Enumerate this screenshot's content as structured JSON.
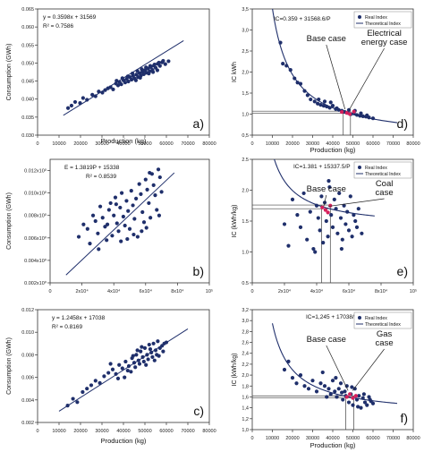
{
  "chart_data": [
    {
      "type": "scatter",
      "panel_label": "a)",
      "ylabel": "Consumption (GWh)",
      "xlabel": "Production (kg)",
      "xlim": [
        0,
        80000
      ],
      "ylim": [
        0.03,
        0.065
      ],
      "x_ticks": [
        0,
        10000,
        20000,
        30000,
        40000,
        50000,
        60000,
        70000,
        80000
      ],
      "x_tick_labels": [
        "0",
        "10000",
        "20000",
        "30000",
        "40000",
        "50000",
        "60000",
        "70000",
        "80000"
      ],
      "y_ticks": [
        0.03,
        0.035,
        0.04,
        0.045,
        0.05,
        0.055,
        0.06,
        0.065
      ],
      "y_tick_labels": [
        "0.030",
        "0.035",
        "0.040",
        "0.045",
        "0.050",
        "0.055",
        "0.060",
        "0.065"
      ],
      "equation": "y = 0.3598x + 31569",
      "r2": "R² = 0.7586",
      "trendline": {
        "x": [
          12000,
          68000
        ],
        "y": [
          0.0355,
          0.0562
        ]
      },
      "points": {
        "x": [
          14200,
          15800,
          17500,
          19800,
          21200,
          23000,
          25500,
          27000,
          28500,
          30200,
          31500,
          32800,
          34000,
          35200,
          36500,
          37500,
          38200,
          39000,
          40000,
          40800,
          41500,
          42300,
          43000,
          43800,
          44500,
          45200,
          46000,
          46800,
          47500,
          48200,
          48800,
          49500,
          50200,
          50800,
          51500,
          52200,
          52800,
          53500,
          54200,
          55000,
          56000,
          57000,
          58000,
          59500,
          61000,
          36800,
          39500,
          42000,
          44200,
          46500,
          48500,
          50500,
          52500,
          54500,
          56500,
          58500,
          45800,
          47800,
          49800,
          51800,
          53800,
          55800
        ],
        "y": [
          0.0375,
          0.0382,
          0.0392,
          0.0389,
          0.0403,
          0.0398,
          0.0412,
          0.0408,
          0.0421,
          0.0418,
          0.0425,
          0.043,
          0.0433,
          0.0427,
          0.0443,
          0.0438,
          0.0447,
          0.0441,
          0.0452,
          0.0446,
          0.0456,
          0.0449,
          0.0461,
          0.0454,
          0.0464,
          0.0457,
          0.0468,
          0.0461,
          0.0472,
          0.0466,
          0.0476,
          0.0469,
          0.0481,
          0.0473,
          0.0485,
          0.0477,
          0.0489,
          0.0481,
          0.0493,
          0.0487,
          0.0498,
          0.0492,
          0.0502,
          0.0497,
          0.0505,
          0.0451,
          0.0458,
          0.0463,
          0.0471,
          0.0478,
          0.0483,
          0.0488,
          0.0492,
          0.0496,
          0.0501,
          0.0506,
          0.0452,
          0.0459,
          0.0479,
          0.0471,
          0.0475,
          0.048
        ]
      }
    },
    {
      "type": "scatter",
      "panel_label": "b)",
      "ylabel": "Consumption (GWh)",
      "xlim": [
        0,
        100000
      ],
      "ylim": [
        0.002,
        0.013
      ],
      "x_ticks": [
        0,
        20000,
        40000,
        60000,
        80000,
        100000
      ],
      "x_tick_labels": [
        "0",
        "2x10⁴",
        "4x10⁴",
        "6x10⁴",
        "8x10⁴",
        "10⁵"
      ],
      "y_ticks": [
        0.002,
        0.004,
        0.006,
        0.008,
        0.01,
        0.012
      ],
      "y_tick_labels": [
        "0.002x10⁰",
        "0.004x10⁰",
        "0.006x10⁰",
        "0.008x10⁰",
        "0.010x10⁰",
        "0.012x10⁰"
      ],
      "equation": "E = 1.3819P + 15338",
      "r2": "R² = 0.8539",
      "trendline": {
        "x": [
          10000,
          78000
        ],
        "y": [
          0.0027,
          0.0118
        ]
      },
      "points": {
        "x": [
          18000,
          21000,
          23500,
          25000,
          27000,
          28500,
          30000,
          31500,
          33000,
          34500,
          35500,
          37000,
          38000,
          39000,
          40000,
          41000,
          42000,
          43000,
          44000,
          45000,
          46000,
          47000,
          48000,
          49000,
          50000,
          51000,
          52000,
          53000,
          54000,
          55000,
          56000,
          57000,
          58000,
          59000,
          60000,
          61000,
          62000,
          63000,
          64000,
          65000,
          66000,
          67000,
          68000,
          69000,
          70000,
          36000,
          44500,
          52500,
          60500,
          68500,
          30500,
          48500,
          57500,
          62500,
          41500
        ],
        "y": [
          0.0061,
          0.0072,
          0.0068,
          0.0055,
          0.008,
          0.0075,
          0.0064,
          0.0088,
          0.0078,
          0.007,
          0.0058,
          0.0085,
          0.0091,
          0.0062,
          0.008,
          0.0096,
          0.0073,
          0.0066,
          0.0087,
          0.01,
          0.0079,
          0.0071,
          0.0093,
          0.0084,
          0.0068,
          0.0102,
          0.0089,
          0.0077,
          0.0095,
          0.0061,
          0.0108,
          0.0099,
          0.0083,
          0.0074,
          0.0112,
          0.0103,
          0.0091,
          0.0078,
          0.0117,
          0.0107,
          0.0098,
          0.0085,
          0.0121,
          0.0114,
          0.0101,
          0.0072,
          0.0057,
          0.0063,
          0.0069,
          0.008,
          0.005,
          0.0059,
          0.0066,
          0.0118,
          0.009
        ]
      }
    },
    {
      "type": "scatter",
      "panel_label": "c)",
      "ylabel": "Consumption (GWh)",
      "xlabel": "Production (kg)",
      "xlim": [
        0,
        80000
      ],
      "ylim": [
        0.002,
        0.012
      ],
      "x_ticks": [
        0,
        10000,
        20000,
        30000,
        40000,
        50000,
        60000,
        70000,
        80000
      ],
      "x_tick_labels": [
        "0",
        "10000",
        "20000",
        "30000",
        "40000",
        "50000",
        "60000",
        "70000",
        "80000"
      ],
      "y_ticks": [
        0.002,
        0.004,
        0.006,
        0.008,
        0.01,
        0.012
      ],
      "y_tick_labels": [
        "0.002",
        "0.004",
        "0.006",
        "0.008",
        "0.010",
        "0.012"
      ],
      "equation": "y = 1.2458x + 17038",
      "r2": "R² = 0.8169",
      "trendline": {
        "x": [
          10000,
          70000
        ],
        "y": [
          0.003,
          0.0103
        ]
      },
      "points": {
        "x": [
          14000,
          16500,
          18500,
          21000,
          23000,
          25000,
          27000,
          29000,
          31000,
          33000,
          35000,
          36500,
          38000,
          39500,
          41000,
          42500,
          44000,
          45000,
          46000,
          47000,
          48000,
          49000,
          50000,
          51000,
          52000,
          53000,
          54000,
          55000,
          56000,
          57000,
          58000,
          59000,
          60000,
          43500,
          45500,
          47500,
          49500,
          51500,
          53500,
          55500,
          40500,
          42000,
          44500,
          46500,
          48500,
          50500,
          52500,
          54500,
          56500,
          58500,
          37500,
          34000
        ],
        "y": [
          0.0035,
          0.0041,
          0.0038,
          0.0047,
          0.005,
          0.0053,
          0.0057,
          0.0055,
          0.0061,
          0.0064,
          0.0067,
          0.0063,
          0.0071,
          0.0068,
          0.0074,
          0.007,
          0.0077,
          0.0073,
          0.008,
          0.0075,
          0.0083,
          0.0078,
          0.0086,
          0.008,
          0.0089,
          0.0082,
          0.009,
          0.0084,
          0.0092,
          0.0086,
          0.0088,
          0.009,
          0.0091,
          0.0065,
          0.0069,
          0.0072,
          0.0074,
          0.0076,
          0.0078,
          0.008,
          0.006,
          0.0066,
          0.0079,
          0.0084,
          0.0087,
          0.0071,
          0.0085,
          0.0075,
          0.0079,
          0.0083,
          0.0059,
          0.0072
        ]
      }
    },
    {
      "type": "scatter",
      "panel_label": "d)",
      "ylabel": "IC kWh",
      "xlabel": "Production (kg)",
      "xlim": [
        0,
        80000
      ],
      "ylim": [
        0.5,
        3.5
      ],
      "x_ticks": [
        0,
        10000,
        20000,
        30000,
        40000,
        50000,
        60000,
        70000,
        80000
      ],
      "x_tick_labels": [
        "0",
        "10000",
        "20000",
        "30000",
        "40000",
        "50000",
        "60000",
        "70000",
        "80000"
      ],
      "y_ticks": [
        0.5,
        1.0,
        1.5,
        2.0,
        2.5,
        3.0,
        3.5
      ],
      "y_tick_labels": [
        "0,5",
        "1,0",
        "1,5",
        "2,0",
        "2,5",
        "3,0",
        "3,5"
      ],
      "equation": "IC=0.359 + 31568.6/P",
      "curve": {
        "a": 0.359,
        "b": 31568.6,
        "x_from": 9600,
        "x_to": 72000
      },
      "legend": [
        "Real Index",
        "Theoretical Index"
      ],
      "annotations": [
        "Base case",
        "Electrical energy case"
      ],
      "h_reference": [
        1.02,
        1.07
      ],
      "v_reference": [
        45200,
        48800
      ],
      "highlight": {
        "x": [
          44500,
          47000,
          48500,
          50500
        ],
        "y": [
          1.05,
          1.03,
          1.0,
          1.06
        ]
      },
      "points": {
        "x": [
          14000,
          15200,
          17000,
          19000,
          21000,
          22500,
          24000,
          26000,
          27500,
          29000,
          31000,
          32500,
          34000,
          35500,
          37000,
          38500,
          40000,
          41500,
          43000,
          44500,
          46000,
          47500,
          49000,
          50500,
          52000,
          53500,
          55000,
          56500,
          58000,
          60000,
          33000,
          36000,
          39000,
          42000,
          45000,
          48000,
          51000,
          54000,
          57000
        ],
        "y": [
          2.7,
          2.2,
          2.15,
          2.05,
          1.85,
          1.75,
          1.72,
          1.55,
          1.45,
          1.35,
          1.3,
          1.25,
          1.22,
          1.2,
          1.18,
          1.15,
          1.2,
          1.12,
          1.1,
          1.08,
          1.05,
          1.03,
          1.0,
          1.02,
          0.98,
          0.96,
          0.95,
          0.94,
          0.92,
          0.9,
          1.35,
          1.3,
          1.28,
          1.14,
          1.06,
          1.1,
          1.08,
          1.02,
          0.97
        ]
      }
    },
    {
      "type": "scatter",
      "panel_label": "e)",
      "ylabel": "IC (kWh/kg)",
      "xlim": [
        0,
        100000
      ],
      "ylim": [
        0.5,
        2.5
      ],
      "x_ticks": [
        0,
        20000,
        40000,
        60000,
        80000,
        100000
      ],
      "x_tick_labels": [
        "0",
        "2x10⁴",
        "4x10⁴",
        "6x10⁴",
        "8x10⁴",
        "10⁵"
      ],
      "y_ticks": [
        0.5,
        1.0,
        1.5,
        2.0,
        2.5
      ],
      "y_tick_labels": [
        "0.5",
        "1.0",
        "1.5",
        "2.0",
        "2.5"
      ],
      "equation": "IC=1.381 + 15337.5/P",
      "curve": {
        "a": 1.381,
        "b": 15337.5,
        "x_from": 9000,
        "x_to": 76000
      },
      "legend": [
        "Real Index",
        "Theoretical Index"
      ],
      "annotations": [
        "Base case",
        "Coal case"
      ],
      "h_reference": [
        1.7,
        1.76
      ],
      "v_reference": [
        43000,
        48500
      ],
      "highlight": {
        "x": [
          43500,
          45500,
          47000,
          48500
        ],
        "y": [
          1.72,
          1.68,
          1.64,
          1.75
        ]
      },
      "points": {
        "x": [
          20000,
          22500,
          25000,
          28000,
          30000,
          32000,
          34000,
          36000,
          38000,
          40000,
          41000,
          42000,
          43000,
          44000,
          45000,
          46000,
          47000,
          48000,
          49000,
          50000,
          51000,
          52000,
          53000,
          54000,
          55000,
          56000,
          57000,
          58000,
          59000,
          60000,
          61000,
          62000,
          63000,
          64000,
          65000,
          66000,
          68000,
          39000,
          47500,
          55500
        ],
        "y": [
          1.45,
          1.1,
          1.85,
          1.6,
          1.4,
          1.95,
          1.2,
          1.65,
          1.05,
          1.75,
          1.55,
          1.35,
          1.9,
          1.15,
          1.8,
          1.5,
          1.25,
          2.05,
          1.6,
          1.4,
          1.85,
          1.7,
          1.3,
          1.95,
          1.55,
          1.2,
          1.75,
          1.45,
          1.65,
          1.35,
          1.9,
          1.25,
          1.6,
          1.5,
          1.4,
          1.7,
          1.3,
          1.0,
          2.15,
          1.05
        ]
      }
    },
    {
      "type": "scatter",
      "panel_label": "f)",
      "ylabel": "IC (kWh/kg)",
      "xlabel": "Production (kg)",
      "xlim": [
        0,
        80000
      ],
      "ylim": [
        1.0,
        3.2
      ],
      "x_ticks": [
        0,
        10000,
        20000,
        30000,
        40000,
        50000,
        60000,
        70000,
        80000
      ],
      "x_tick_labels": [
        "0",
        "10000",
        "20000",
        "30000",
        "40000",
        "50000",
        "60000",
        "70000",
        "80000"
      ],
      "y_ticks": [
        1.0,
        1.2,
        1.4,
        1.6,
        1.8,
        2.0,
        2.2,
        2.4,
        2.6,
        2.8,
        3.0,
        3.2
      ],
      "y_tick_labels": [
        "1,0",
        "1,2",
        "1,4",
        "1,6",
        "1,8",
        "2,0",
        "2,2",
        "2,4",
        "2,6",
        "2,8",
        "3,0",
        "3,2"
      ],
      "equation": "IC=1,245 + 17038/P",
      "curve": {
        "a": 1.245,
        "b": 17038,
        "x_from": 10000,
        "x_to": 72000
      },
      "legend": [
        "Real Index",
        "Theoretical Index"
      ],
      "annotations": [
        "Base case",
        "Gas case"
      ],
      "h_reference": [
        1.58,
        1.62
      ],
      "v_reference": [
        46500,
        50500
      ],
      "highlight": {
        "x": [
          47000,
          48500,
          50000,
          51500
        ],
        "y": [
          1.6,
          1.65,
          1.58,
          1.62
        ]
      },
      "points": {
        "x": [
          16000,
          18000,
          20000,
          22000,
          24000,
          26000,
          28000,
          30000,
          32000,
          34000,
          36000,
          38000,
          39000,
          40000,
          41000,
          42000,
          43000,
          44000,
          45000,
          46000,
          47000,
          48000,
          49000,
          50000,
          51000,
          52000,
          53000,
          54000,
          55000,
          56000,
          57000,
          58000,
          59000,
          60000,
          35000,
          37000,
          44500,
          49500,
          52500,
          55500,
          58500,
          41500,
          46500
        ],
        "y": [
          2.1,
          2.25,
          1.95,
          1.85,
          2.0,
          1.8,
          1.75,
          1.9,
          1.7,
          1.85,
          1.8,
          1.75,
          1.65,
          1.9,
          1.7,
          1.6,
          1.75,
          1.85,
          1.55,
          1.7,
          1.8,
          1.5,
          1.65,
          1.45,
          1.75,
          1.55,
          1.62,
          1.4,
          1.58,
          1.5,
          1.45,
          1.6,
          1.52,
          1.48,
          2.05,
          1.6,
          1.68,
          1.78,
          1.42,
          1.65,
          1.55,
          1.95,
          1.62
        ]
      }
    }
  ],
  "colors": {
    "point": "#1f2f6b",
    "line": "#1f2f6b",
    "axis": "#333333",
    "highlight": "#d6205c",
    "reference_line": "#444444"
  }
}
